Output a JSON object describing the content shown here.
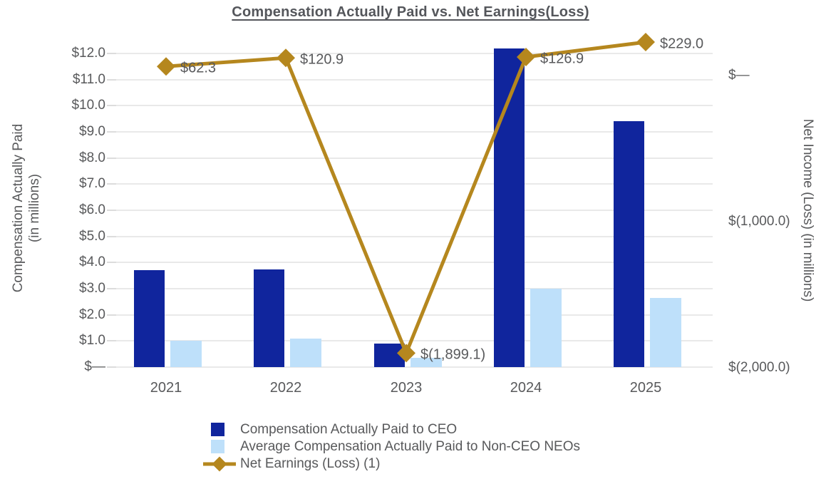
{
  "title": "Compensation Actually Paid vs. Net Earnings(Loss)",
  "colors": {
    "ceo_bar": "#10259D",
    "neo_bar": "#BEE0FA",
    "line": "#B5871E",
    "text": "#58595B",
    "title_text": "#54565B",
    "gridline": "#E9E9E9"
  },
  "chart_data": {
    "type": "bar",
    "subtype": "combo-bar-line-dual-axis",
    "title": "Compensation Actually Paid vs. Net Earnings(Loss)",
    "categories": [
      "2021",
      "2022",
      "2023",
      "2024",
      "2025"
    ],
    "series": [
      {
        "name": "Compensation Actually Paid to CEO",
        "type": "bar",
        "axis": "left",
        "color": "#10259D",
        "values": [
          3.7,
          3.75,
          0.9,
          12.2,
          9.4
        ]
      },
      {
        "name": "Average Compensation Actually Paid to Non-CEO NEOs",
        "type": "bar",
        "axis": "left",
        "color": "#BEE0FA",
        "values": [
          1.0,
          1.1,
          0.35,
          3.0,
          2.65
        ]
      },
      {
        "name": "Net Earnings (Loss) (1)",
        "type": "line",
        "axis": "right",
        "color": "#B5871E",
        "marker": "diamond",
        "values": [
          62.3,
          120.9,
          -1899.1,
          126.9,
          229.0
        ],
        "point_labels": [
          "$62.3",
          "$120.9",
          "$(1,899.1)",
          "$126.9",
          "$229.0"
        ]
      }
    ],
    "left_axis": {
      "title_line1": "Compensation Actually Paid",
      "title_line2": "(in millions)",
      "min": 0,
      "max": 12,
      "tick_labels": [
        "$12.0",
        "$11.0",
        "$10.0",
        "$9.0",
        "$8.0",
        "$7.0",
        "$6.0",
        "$5.0",
        "$4.0",
        "$3.0",
        "$2.0",
        "$1.0",
        "$—"
      ]
    },
    "right_axis": {
      "title": "Net Income (Loss) (in millions)",
      "min": -2000,
      "max": 0,
      "tick_labels": [
        "$—",
        "$(1,000.0)",
        "$(2,000.0)"
      ],
      "tick_values": [
        0,
        -1000,
        -2000
      ]
    },
    "grid": "horizontal",
    "legend": {
      "position": "bottom-left",
      "items": [
        "Compensation Actually Paid to CEO",
        "Average Compensation Actually Paid to Non-CEO NEOs",
        "Net Earnings (Loss) (1)"
      ]
    }
  }
}
